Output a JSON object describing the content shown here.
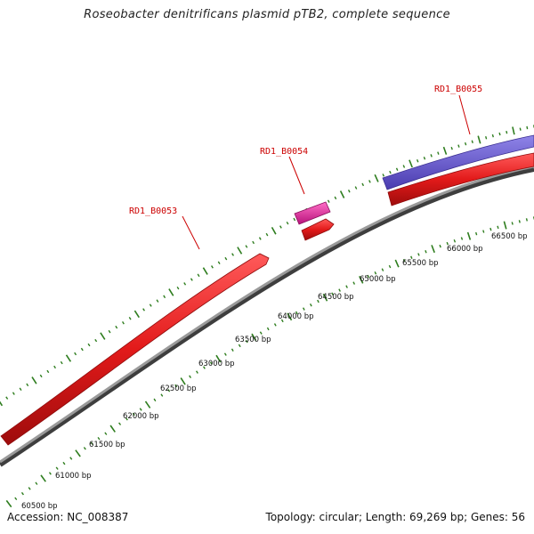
{
  "title": "Roseobacter denitrificans plasmid pTB2, complete sequence",
  "accession": "Accession: NC_008387",
  "summary": "Topology: circular; Length: 69,269 bp; Genes: 56",
  "colors": {
    "backbone": "#8a8a8a",
    "tick": "#2e7d1e",
    "gene_forward": "#e21a1a",
    "gene_pink": "#e0239a",
    "gene_purple": "#6a5ad0",
    "label": "#cc0000"
  },
  "genes": [
    {
      "id": "RD1_B0053",
      "label": "RD1_B0053"
    },
    {
      "id": "RD1_B0054",
      "label": "RD1_B0054"
    },
    {
      "id": "RD1_B0055",
      "label": "RD1_B0055"
    }
  ],
  "scale_labels": [
    "60500 bp",
    "61000 bp",
    "61500 bp",
    "62000 bp",
    "62500 bp",
    "63000 bp",
    "63500 bp",
    "64000 bp",
    "64500 bp",
    "65000 bp",
    "65500 bp",
    "66000 bp",
    "66500 bp"
  ]
}
